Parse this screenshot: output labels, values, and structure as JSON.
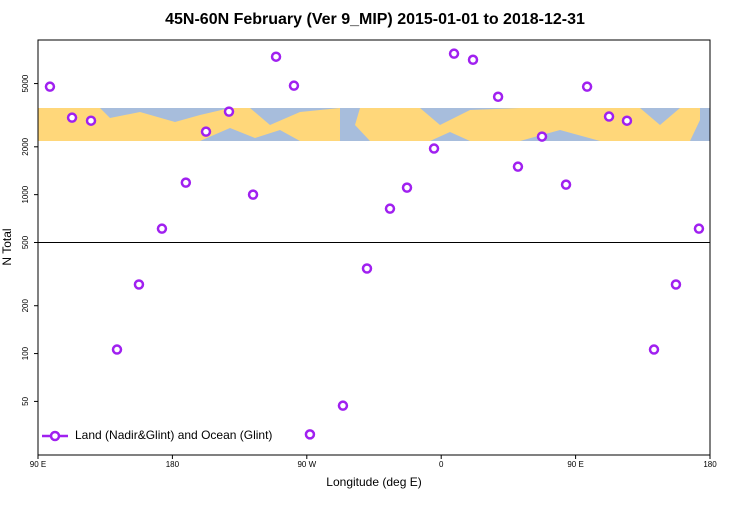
{
  "chart_data": {
    "type": "scatter",
    "title": "45N-60N February (Ver 9_MIP)   2015-01-01 to 2018-12-31",
    "xlabel": "Longitude (deg E)",
    "ylabel": "N Total",
    "xlim": [
      90,
      540
    ],
    "xticks": [
      {
        "value": 90,
        "label": "90 E"
      },
      180,
      {
        "value": 270,
        "label": "90 W"
      },
      {
        "value": 360,
        "label": "0"
      },
      {
        "value": 450,
        "label": "90 E"
      },
      {
        "value": 540,
        "label": "180"
      }
    ],
    "ylim": [
      23,
      9400
    ],
    "ylog": true,
    "yticks": [
      50,
      100,
      200,
      500,
      1000,
      2000,
      5000
    ],
    "hline": 500,
    "legend": "bottom-left",
    "series": [
      {
        "name": "Land (Nadir&Glint) and Ocean (Glint)",
        "color": "#a020f0",
        "x": [
          98,
          112.8,
          125.5,
          142.9,
          157.6,
          173,
          189,
          202.5,
          217.9,
          234,
          249.4,
          261.4,
          272.1,
          294.2,
          310.3,
          325.7,
          337.1,
          355.2,
          368.6,
          381.3,
          398.1,
          411.4,
          427.5,
          443.6,
          457.7,
          472.4,
          484.4,
          502.5,
          517.2,
          532.6
        ],
        "values": [
          4780,
          3050,
          2920,
          106,
          272,
          611,
          1190,
          2490,
          3330,
          1000,
          7380,
          4850,
          31,
          47,
          343,
          816,
          1107,
          1950,
          7710,
          7060,
          4130,
          1500,
          2320,
          1156,
          4780,
          3100,
          2920,
          106,
          272,
          611
        ]
      }
    ]
  }
}
